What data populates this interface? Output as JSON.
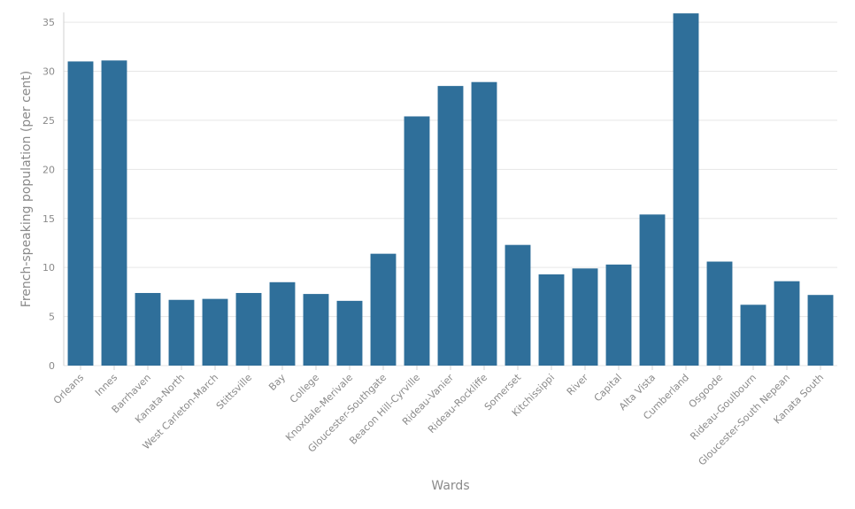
{
  "chart_data": {
    "type": "bar",
    "title": "",
    "xlabel": "Wards",
    "ylabel": "French-speaking population (per cent)",
    "ylim": [
      0,
      36
    ],
    "yticks": [
      0,
      5,
      10,
      15,
      20,
      25,
      30,
      35
    ],
    "grid": true,
    "bar_color": "#2f6f9a",
    "categories": [
      "Orleans",
      "Innes",
      "Barrhaven",
      "Kanata-North",
      "West Carleton-March",
      "Stittsville",
      "Bay",
      "College",
      "Knoxdale-Merivale",
      "Gloucester-Southgate",
      "Beacon Hill-Cyrville",
      "Rideau-Vanier",
      "Rideau-Rockliffe",
      "Somerset",
      "Kitchissippi",
      "River",
      "Capital",
      "Alta Vista",
      "Cumberland",
      "Osgoode",
      "Rideau-Goulbourn",
      "Gloucester-South Nepean",
      "Kanata South"
    ],
    "values": [
      31.0,
      31.1,
      7.4,
      6.7,
      6.8,
      7.4,
      8.5,
      7.3,
      6.6,
      11.4,
      25.4,
      28.5,
      28.9,
      12.3,
      9.3,
      9.9,
      10.3,
      15.4,
      35.9,
      10.6,
      6.2,
      8.6,
      7.2
    ]
  }
}
